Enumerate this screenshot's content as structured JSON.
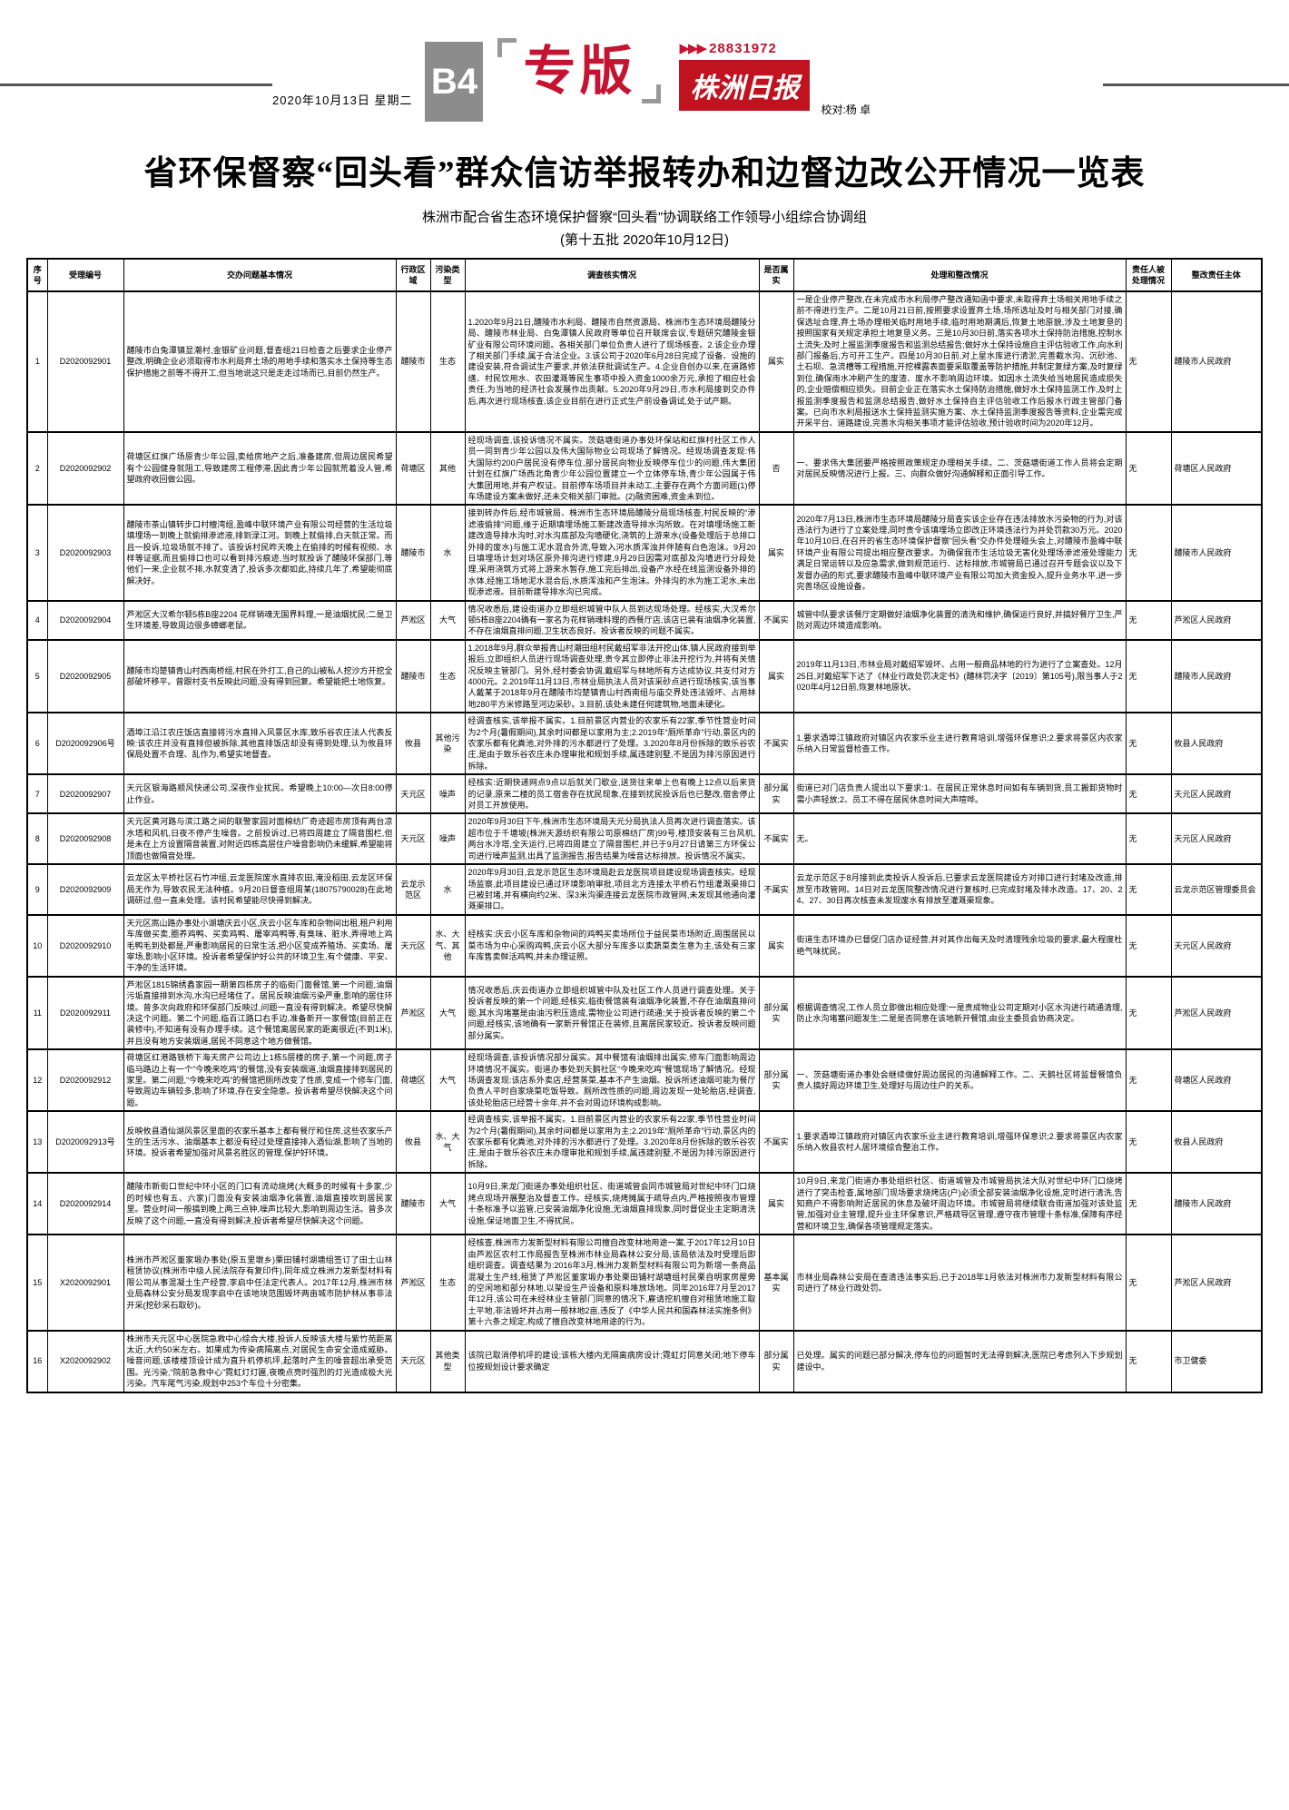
{
  "header": {
    "date": "2020年10月13日 星期二",
    "page_badge": "B4",
    "section": "专版",
    "hotline": "28831972",
    "brand": "株洲日报",
    "proofreader": "校对:杨 卓"
  },
  "title": "省环保督察“回头看”群众信访举报转办和边督边改公开情况一览表",
  "subtitle": "株洲市配合省生态环境保护督察“回头看”协调联络工作领导小组综合协调组",
  "batch_line": "(第十五批 2020年10月12日)",
  "table": {
    "columns": [
      {
        "key": "no",
        "label": "序号"
      },
      {
        "key": "case_id",
        "label": "受理编号"
      },
      {
        "key": "issue",
        "label": "交办问题基本情况"
      },
      {
        "key": "district",
        "label": "行政区域"
      },
      {
        "key": "pollution_type",
        "label": "污染类型"
      },
      {
        "key": "investigation",
        "label": "调查核实情况"
      },
      {
        "key": "verified",
        "label": "是否属实"
      },
      {
        "key": "handling",
        "label": "处理和整改情况"
      },
      {
        "key": "accountability",
        "label": "责任人被处理情况"
      },
      {
        "key": "responsible",
        "label": "整改责任主体"
      }
    ],
    "rows": [
      {
        "no": "1",
        "case_id": "D2020092901",
        "issue": "醴陵市白兔潭镇显潮村,金银矿业问题,督查组21日检查之后要求企业停产整改,明确企业必须取得市水利局弃土场的用地手续和落实水土保持等生态保护措施之前等不得开工,但当地说这只是走走过场而已,目前仍然生产。",
        "district": "醴陵市",
        "pollution_type": "生态",
        "investigation": "1.2020年9月21日,醴陵市水利局、醴陵市自然资源局、株洲市生态环境局醴陵分局、醴陵市林业局、白兔潭镇人民政府等单位召开联席会议,专题研究醴陵金银矿业有限公司环境问题。各相关部门单位负责人进行了现场核查。2.该企业办理了相关部门手续,属于合法企业。3.该公司于2020年6月28日完成了设备、设施的建设安装,符合调试生产要求,并依法获批调试生产。4.企业自创办以来,在道路修缮、村民饮用水、农田灌溉等民生事项中投入资金1000余万元,承担了相应社会责任,为当地的经济社会发展作出贡献。5.2020年9月29日,市水利局接到交办件后,再次进行现场核查,该企业目前在进行正式生产前设备调试,处于试产期。",
        "verified": "属实",
        "handling": "一是企业停产整改,在未完成市水利局停产整改通知函中要求,未取得弃土场相关用地手续之前不得进行生产。二是10月21日前,按照要求设置弃土场,场所选址及时与相关部门对接,确保选址合理,弃土场办理相关临时用地手续,临时用地期满后,恢复土地原貌,涉及土地复垦的按照国家有关规定承担土地复垦义务。三是10月30日前,落实各项水土保持防治措施,控制水土流失;及时上报监测季度报告和监测总结报告;做好水土保持设施自主评估验收工作,向水利部门报备后,方可开工生产。四是10月30日前,对上星水库进行清淤,完善截水沟、沉砂池、土石坝、急流槽等工程措施,开挖裸露表面要采取覆盖等防护措施,并制定复绿方案,及时复绿到位,确保雨水冲刷产生的废渣、废水不影响周边环境。如因水土流失给当地居民造成损失的,企业赔偿相应损失。目前企业正在落实水土保持防治措施,做好水土保持监测工作,及时上报监测季度报告和监测总结报告,做好水土保持自主评估验收工作后报水行政主管部门备案。已向市水利局报送水土保持监测实施方案、水土保持监测季度报告等资料,企业需完成开采平台、道路建设,完善水沟相关事项才能评估验收,预计验收时间为2020年12月。",
        "accountability": "无",
        "responsible": "醴陵市人民政府"
      },
      {
        "no": "2",
        "case_id": "D2020092902",
        "issue": "荷塘区红旗广场原青少年公园,卖给房地产之后,准备建房,但周边居民希望有个公园健身就阻工,导致建房工程停滞,因此青少年公园就荒着没人管,希望政府收回做公园。",
        "district": "荷塘区",
        "pollution_type": "其他",
        "investigation": "经现场调查,该投诉情况不属实。茨菇塘街道办事处环保站和红旗村社区工作人员一同到青少年公园以及伟大国际物业公司现场了解情况。经现场调查发现:伟大国际约200户居民没有停车位,部分居民向物业反映停车位少的问题,伟大集团计划在红旗广场西北角青少年公园位置建立一个立体停车场,青少年公园属于伟大集团用地,并有产权证。目前停车场项目并未动工,主要存在两个方面问题(1)停车场建设方案未做好,还未交相关部门审批。(2)融资困难,资金未到位。",
        "verified": "否",
        "handling": "一、要求伟大集团要严格按照政策规定办理相关手续。二、茨菇塘街道工作人员将会定期对居民反映情况进行上报。三、向群众做好沟通解释和正面引导工作。",
        "accountability": "无",
        "responsible": "荷塘区人民政府"
      },
      {
        "no": "3",
        "case_id": "D2020092903",
        "issue": "醴陵市茶山镇转步口村檀湾组,盈峰中联环境产业有限公司经营的生活垃圾填埋场一到晚上就偷排渗滤液,排到渌江河。到晚上就偷排,白天就正常。而且一投诉,垃圾场就不排了。该投诉村民昨天晚上在偷排的时候有视频、水样等证据,而且偷排口也可以看到排污痕迹,当时就投诉了醴陵环保部门,等他们一来,企业就不排,水就变清了,投诉多次都如此,持续几年了,希望能彻底解决好。",
        "district": "醴陵市",
        "pollution_type": "水",
        "investigation": "接到转办件后,经市城管局、株洲市生态环境局醴陵分局现场核查,村民反映的“渗滤液偷排”问题,缘于近期填埋场施工新建改造导排水沟所致。在对填埋场施工新建改造导排水沟时,对水沟底部及沟墙硬化,浇筑的上游来水(设备处理后于总排口外排的废水)与施工泥水混合外流,导致入河水质浑浊并伴随有白色泡沫。9月20日填埋场计划对场区原外排沟进行修建,9月29日因需对底部及沟墙进行分段处理,采用浇筑方式将上游来水暂存,施工完后排出,设备产水经在线监测设备外排的水体,经施工场地泥水混合后,水质浑浊和产生泡沫。外排沟的水为施工泥水,未出现渗滤液。目前新建导排水沟已完成。",
        "verified": "属实",
        "handling": "2020年7月13日,株洲市生态环境局醴陵分局查实该企业存在违法排放水污染物的行为,对该违法行为进行了立案处理,同时责令该填埋场立即改正环境违法行为并处罚款30万元。2020年10月10日,在召开的省生态环境保护督察“回头看”交办件处理碰头会上,对醴陵市盈峰中联环境产业有限公司提出相应整改要求。为确保我市生活垃圾无害化处理场渗滤液处理能力满足日常运转以及应急需求,做到规范运行、达标排放,市城管局已通过召开专题会议以及下发督办函的形式,要求醴陵市盈峰中联环境产业有限公司加大资金投入,提升业务水平,进一步完善场区设施设备。",
        "accountability": "无",
        "responsible": "醴陵市人民政府"
      },
      {
        "no": "4",
        "case_id": "D2020092904",
        "issue": "芦淞区大汉希尔顿5栋B座2204 花样销魂无国界料理,一是油烟扰民;二是卫生环境差,导致周边很多蟑螂老鼠。",
        "district": "芦淞区",
        "pollution_type": "大气",
        "investigation": "情况收悉后,建设街道办立即组织城管中队人员到达现场处理。经核实,大汉希尔顿5栋B座2204确有一家名为花样销魂料理的西餐厅店,该店已装有油烟净化装置,不存在油烟直排问题,卫生状态良好。投诉者反映的问题不属实。",
        "verified": "不属实",
        "handling": "城管中队要求该餐厅定期做好油烟净化装置的清洗和维护,确保运行良好,并搞好餐厅卫生,严防对周边环境造成影响。",
        "accountability": "无",
        "responsible": "芦淞区人民政府"
      },
      {
        "no": "5",
        "case_id": "D2020092905",
        "issue": "醴陵市均楚镇青山村西南桥组,村民在外打工,自己的山被私人挖沙方开挖全部破坏移平。曾跟村支书反映此问题,没有得到回复。希望能把土地恢复。",
        "district": "醴陵市",
        "pollution_type": "生态",
        "investigation": "1.2018年9月,群众举报青山村潮田组村民戴绍军非法开挖山体,镇人民政府接到举报后,立即组织人员进行现场调查处理,责令其立即停止非法开挖行为,并将有关情况反映主管部门。另外,经村委会协调,戴绍军与林地所有方达成协议,共支付对方4000元。2.2019年11月13日,市林业局执法人员对该采砂点进行现场核实,该当事人戴某于2018年9月在醴陵市均楚镇青山村西南组与庙交界处违法毁坏、占用林地280平方米修路至河边采砂。3.目前,该处未建任何建筑物,地面未硬化。",
        "verified": "属实",
        "handling": "2019年11月13日,市林业局对戴绍军毁坏、占用一般商品林地的行为进行了立案查处。12月25日,对戴绍军下达了《林业行政处罚决定书》(醴林罚决字〔2019〕第105号),限当事人于2020年4月12日前,恢复林地原状。",
        "accountability": "无",
        "responsible": "醴陵市人民政府"
      },
      {
        "no": "6",
        "case_id": "D2020092906号",
        "issue": "酒埠江沿江农庄饭店直接将污水直排入风景区水库,致乐谷农庄法人代表反映:该农庄并没有直排但被拆除,其他直排饭店却没有得到处理,认为攸县环保局处置不合理、乱作为,希望实地督查。",
        "district": "攸县",
        "pollution_type": "其他污染",
        "investigation": "经调查核实,该举报不属实。1.目前景区内营业的农家乐有22家,季节性营业时间为2个月(暑假期间),其余时间都是以家用为主;2.2019年“厕所革命”行动,景区内的农家乐都有化粪池,对外排的污水都进行了处理。3.2020年8月份拆除的致乐谷农庄,是由于致乐谷农庄未办理审批和规划手续,属违建别墅,不是因为排污原因进行拆除。",
        "verified": "不属实",
        "handling": "1.要求酒埠江镇政府对镇区内农家乐业主进行教育培训,增强环保意识;2.要求将景区内农家乐纳入日常监督检查工作。",
        "accountability": "无",
        "responsible": "攸县人民政府"
      },
      {
        "no": "7",
        "case_id": "D2020092907",
        "issue": "天元区银海路顺风快递公司,深夜作业扰民。希望晚上10:00—次日8:00停止作业。",
        "district": "天元区",
        "pollution_type": "噪声",
        "investigation": "经核实:近期快递网点9点以后就关门歇业,送货往来单上也有晚上12点以后来货的记录,原来二楼的员工宿舍存在扰民现象,在接到扰民投诉后也已整改,宿舍停止对员工开放使用。",
        "verified": "部分属实",
        "handling": "街道已对门店负责人提出以下要求:1、在居民正常休息时间如有车辆到货,员工搬卸货物时需小声轻放;2、员工不得在居民休息时间大声喧哗。",
        "accountability": "无",
        "responsible": "天元区人民政府"
      },
      {
        "no": "8",
        "case_id": "D2020092908",
        "issue": "天元区黄河路与滨江路之间的联警家园对面棉纺厂奇迹超市房顶有两台凉水塔和风机,日夜不停产生噪音。之前投诉过,已将四周建立了隔音围栏,但是未在上方设置隔音装置,对附近四栋高层住户噪音影响仍未缓解,希望能将顶面也做隔音处理。",
        "district": "天元区",
        "pollution_type": "噪声",
        "investigation": "2020年9月30日下午,株洲市生态环境局天元分局执法人员再次进行调查落实。该超市位于千塘坡(株洲天源纺织有限公司原棉纺厂房)99号,楼顶安装有三台风机,两台水冷塔,全天运行,已将四周建立了隔音围栏,并已于9月27日请第三方环保公司进行噪声监测,出具了监测报告,报告结果为噪音达标排放。投诉情况不属实。",
        "verified": "不属实",
        "handling": "无。",
        "accountability": "无",
        "responsible": "天元区人民政府"
      },
      {
        "no": "9",
        "case_id": "D2020092909",
        "issue": "云龙区太平桥社区石竹冲组,云龙医院废水直排农田,淹没稻田,云龙区环保局无作为,导致农民无法种植。9月20日督查组周某(18075790028)在此地调研过,但一直未处理。该村民希望能尽快得到解决。",
        "district": "云龙示范区",
        "pollution_type": "水",
        "investigation": "2020年9月30日,云龙示范区生态环境局赴云龙医院项目建设现场调查核实。经现场监察,此项目建设已通过环境影响审批,项目北方连接太平桥石竹组灌溉渠排口已被封堵,并有横向约2米、深3米沟渠连接云龙医院市政管网,未发现其他通向灌溉渠排口。",
        "verified": "不属实",
        "handling": "云龙示范区于8月接到此类投诉人投诉后,已要求云龙医院建设方对排口进行封堵及改造,排放至市政管网。14日对云龙医院整改情况进行复核时,已完成封堵及排水改造。17、20、24、27、30日再次核查未发现废水有排放至灌溉渠现象。",
        "accountability": "无",
        "responsible": "云龙示范区管理委员会"
      },
      {
        "no": "10",
        "case_id": "D2020092910",
        "issue": "天元区嵩山路办事处小湖塘庆云小区,庆云小区车库和杂物间出租,租户利用车库做买卖,圈养鸡鸭、买卖鸡鸭、屠宰鸡鸭等,有臭味、脏水,弄得地上鸡毛鸭毛到处都是,严重影响居民的日常生活,把小区变成养殖场、买卖场、屠宰场,影响小区环境。投诉者希望保护好公共的环境卫生,有个健康、平安、干净的生活环境。",
        "district": "天元区",
        "pollution_type": "水、大气、其他",
        "investigation": "经核实:庆云小区车库和杂物间的鸡鸭买卖场所位于益民菜市场附近,周围居民以菜市场为中心采购鸡鸭,庆云小区大部分车库多以卖蔬菜类生意为主,该处有三家车库售卖鲜活鸡鸭,并未办理证照。",
        "verified": "属实",
        "handling": "街道生态环境办已督促门店办证经营,并对其作出每天及时清理残余垃圾的要求,最大程度杜绝气味扰民。",
        "accountability": "无",
        "responsible": "天元区人民政府"
      },
      {
        "no": "11",
        "case_id": "D2020092911",
        "issue": "芦淞区1815锦绣鑫家园一期第四栋房子的临街门面餐馆,第一个问题,油烟污垢直接排到水沟,水沟已经堵住了。居民反映油烟污染严重,影响的居住环境。曾多次向政府和环保部门反映过,问题一直没有得到解决。希望尽快解决这个问题。第二个问题,临百江路口右手边,准备新开一家餐馆(目前正在装修中),不知道有没有办理手续。这个餐馆离居民家的距离很近(不到1米),并且没有地方安装烟道,居民不同意这个地方做餐馆。",
        "district": "芦淞区",
        "pollution_type": "大气",
        "investigation": "情况收悉后,庆云街道办立即组织城管中队及社区工作人员进行调查处理。关于投诉者反映的第一个问题,经核实,临街餐馆装有油烟净化装置,不存在油烟直排问题,其水沟堵塞是由油污积压造成,需物业公司进行疏通;关于投诉者反映的第二个问题,经核实,该地确有一家新开餐馆正在装修,且离居民家较近。投诉者反映问题部分属实。",
        "verified": "部分属实",
        "handling": "根据调查情况,工作人员立即做出相应处理:一是责成物业公司定期对小区水沟进行疏通清理,防止水沟堵塞问题发生;二是是否同意在该地新开餐馆,由业主委员会协商决定。",
        "accountability": "无",
        "responsible": "芦淞区人民政府"
      },
      {
        "no": "12",
        "case_id": "D2020092912",
        "issue": "荷塘区红港路铁桥下海天房产公司边上1栋5层楼的房子,第一个问题,房子临马路边上有一个“今晚来吃鸡”的餐馆,没有安装烟道,油烟直接排到居民的家里。第二问题,“今晚来吃鸡”的餐馆把厕所改变了性质,变成一个修车门面,导致周边车辆较多,影响了环境,存在安全隐患。投诉者希望尽快解决这个问题。",
        "district": "荷塘区",
        "pollution_type": "大气",
        "investigation": "经现场调查,该投诉情况部分属实。其中餐馆有油烟排出属实,修车门面影响周边环境情况不属实。街道办事处到天鹅社区“今晚来吃鸡”餐馆现场了解情况。经现场调查发现:该店系外卖店,经营蒸菜,基本不产生油烟。投诉所述油烟可能为餐厅负责人平时自家烧菜吃饭导致。厕所改性质的问题,周边发现一处轮胎店,经调查,该处轮胎店已经营十余年,并不会对周边环境构成影响。",
        "verified": "部分属实",
        "handling": "一、茨菇塘街道办事处会继续做好周边居民的沟通解释工作。二、天鹅社区将监督餐馆负责人搞好周边环境卫生,处理好与周边住户的关系。",
        "accountability": "无",
        "responsible": "荷塘区人民政府"
      },
      {
        "no": "13",
        "case_id": "D2020092913号",
        "issue": "反映攸县酒仙湖风景区里面的农家乐基本上都有餐厅和住房,这些农家乐产生的生活污水、油烟基本上都没有经过处理直接排入酒仙湖,影响了当地的环境。投诉者希望加强对风景名胜区的管理,保护好环境。",
        "district": "攸县",
        "pollution_type": "水、大气",
        "investigation": "经调查核实,该举报不属实。1.目前景区内营业的农家乐有22家,季节性营业时间为2个月(暑假期间),其余时间都是以家用为主;2.2019年“厕所革命”行动,景区内的农家乐都有化粪池,对外排的污水都进行了处理。3.2020年8月份拆除的致乐谷农庄,是由于致乐谷农庄未办理审批和规划手续,属违建别墅,不是因为排污原因进行拆除。",
        "verified": "不属实",
        "handling": "1.要求酒埠江镇政府对镇区内农家乐业主进行教育培训,增强环保意识;2.要求将景区内农家乐纳入攸县农村人居环境综合整治工作。",
        "accountability": "无",
        "responsible": "攸县人民政府"
      },
      {
        "no": "14",
        "case_id": "D2020092914",
        "issue": "醴陵市新街口世纪中环小区的门口有流动烧烤(大概多的时候有十多家,少的时候也有五、六家)门面没有安装油烟净化装置,油烟直接吹到居民家里。营业时间一般搞到晚上两三点钟,噪声比较大,影响到周边生活。曾多次反映了这个问题,一直没有得到解决,投诉者希望尽快解决这个问题。",
        "district": "醴陵市",
        "pollution_type": "大气",
        "investigation": "10月9日,来龙门街道办事处组织社区、街道城管会同市城管局对世纪中环门口烧烤点现场开展整治及督查工作。经核实,烧烤摊属于疏导点内,严格按照夜市管理十条标准予以监管,已安装油烟净化设施,无油烟直排现象,同时督促业主定期清洗设施,保证地面卫生,不得扰民。",
        "verified": "属实",
        "handling": "10月9日,来龙门街道办事处组织社区、街道城管及市城管局执法大队对世纪中环门口烧烤进行了突击检查,属地部门现场要求烧烤店(户)必须全部安装油烟净化设施,定时进行清洗,告知商户不得影响附近居民的休息及破坏周边环境。市城管局将继续联合街道加强对该处监管,加强对业主管理,提升业主环保意识,严格疏导区管理,遵守夜市管理十条标准,保障有序经营和环境卫生,确保各项管理规定落实。",
        "accountability": "无",
        "responsible": "醴陵市人民政府"
      },
      {
        "no": "15",
        "case_id": "X2020092901",
        "issue": "株洲市芦淞区董家塅办事处(原五里墩乡)栗田铺村湖塘组签订了田土山林租赁协议(株洲市中级人民法院存有复印件),同年成立株洲力发新型材料有限公司从事混凝土生产经营,李启中任法定代表人。2017年12月,株洲市林业局森林公安分局发现李启中在该地块范围毁坏两亩城市防护林从事非法开采(挖砂采石取砂)。",
        "district": "芦淞区",
        "pollution_type": "生态",
        "investigation": "经核查,株洲市力发新型材料有限公司擅自改变林地用途一案,于2017年12月10日由芦淞区农村工作局报告至株洲市林业局森林公安分局,该局依法及时受理后即组织调查。调查结果为:2016年3月,株洲力发新型材料有限公司为新增一条商品混凝土生产线,租赁了芦淞区董家塅办事处栗田铺村湖塘组村民栗自明家房屋旁的空闲地和部分林地,以架设生产设备和原料堆放场地。同年2016年7月至2017年12月,该公司在未经林业主管部门同意的情况下,雇请挖机擅自对租赁地施工取土平地,非法毁坏并占用一般林地2亩,违反了《中华人民共和国森林法实施条例》第十六条之规定,构成了擅自改变林地用途的行为。",
        "verified": "基本属实",
        "handling": "市林业局森林公安局在查清违法事实后,已于2018年1月依法对株洲市力发新型材料有限公司进行了林业行政处罚。",
        "accountability": "无",
        "responsible": "芦淞区人民政府"
      },
      {
        "no": "16",
        "case_id": "X2020092902",
        "issue": "株洲市天元区中心医院急救中心综合大楼,投诉人反映该大楼与紫竹苑距离太近,大约50米左右。如果成为传染病隔离点,对居民生命安全造成威胁。噪音问题,该楼楼顶设计成为直升机停机坪,起落时产生的噪音超出承受范围。光污染,“院前急救中心”霓虹灯灯匾,夜晚点亮时强烈的灯光造成极大光污染。汽车尾气污染,规划中253个车位十分密集。",
        "district": "天元区",
        "pollution_type": "其他类型",
        "investigation": "该院已取消停机坪的建设;该栋大楼内无隔离病房设计;霓虹灯同意关闭;地下停车位按规划设计要求确定",
        "verified": "部分属实",
        "handling": "已处理。属实的问题已部分解决,停车位的问题暂时无法得到解决,医院已考虑列入下步规划建设中。",
        "accountability": "无",
        "responsible": "市卫健委"
      }
    ]
  }
}
